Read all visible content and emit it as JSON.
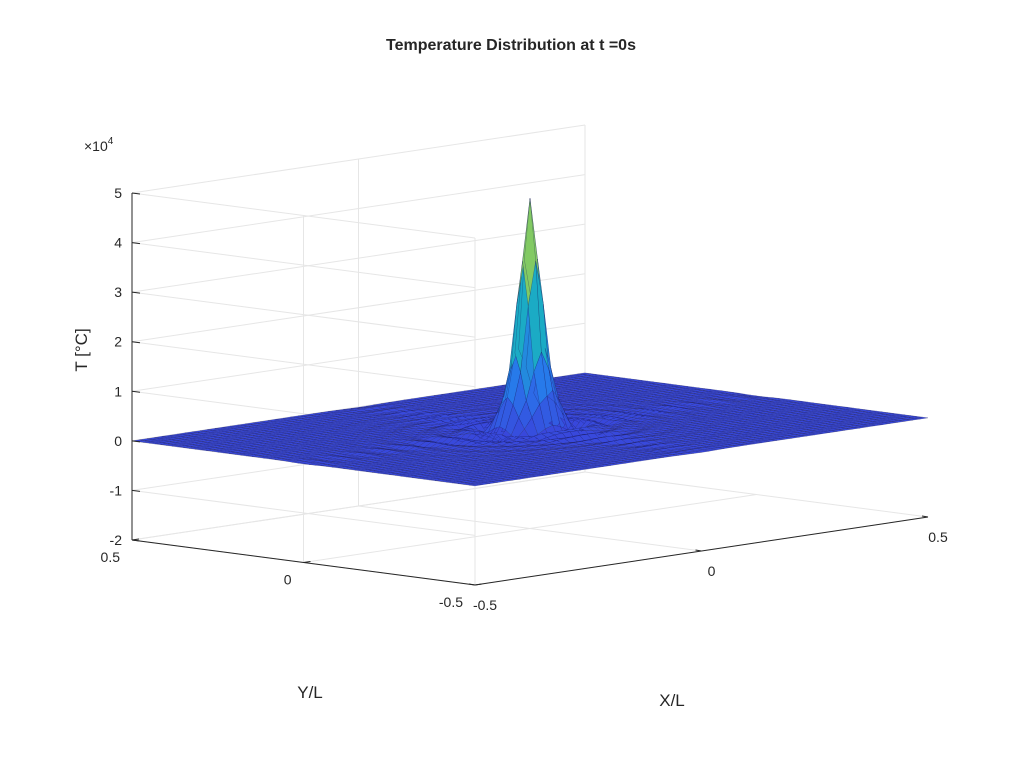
{
  "chart_data": {
    "type": "surface",
    "title": "Temperature Distribution at t =0s",
    "xlabel": "X/L",
    "ylabel": "Y/L",
    "zlabel": "T [°C]",
    "xlim": [
      -0.5,
      0.5
    ],
    "ylim": [
      -0.5,
      0.5
    ],
    "zlim": [
      -20000,
      50000
    ],
    "xticks": [
      "-0.5",
      "0",
      "0.5"
    ],
    "yticks": [
      "-0.5",
      "0",
      "0.5"
    ],
    "zticks": [
      "-2",
      "-1",
      "0",
      "1",
      "2",
      "3",
      "4",
      "5"
    ],
    "z_exponent_label": "×10",
    "z_exponent_power": "4",
    "grid": true,
    "colormap": "parula",
    "peak": {
      "x": 0,
      "y": 0,
      "T": 43000
    },
    "baseline_T": 0,
    "surface_colors": {
      "low": "#3b3fd9",
      "mid": "#1fa5c8",
      "high": "#f0c92a"
    }
  }
}
